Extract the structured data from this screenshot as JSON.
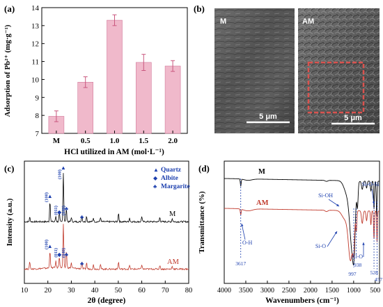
{
  "panels": {
    "a": {
      "label": "(a)"
    },
    "b": {
      "label": "(b)",
      "left_label": "M",
      "right_label": "AM",
      "scale_left": "5 μm",
      "scale_right": "5 μm"
    },
    "c": {
      "label": "(c)"
    },
    "d": {
      "label": "(d)"
    }
  },
  "chart_data": [
    {
      "id": "a",
      "type": "bar",
      "ylabel": "Adsorption of Pb²⁺ (mg·g⁻¹)",
      "xlabel": "HCl utilized in AM (mol·L⁻¹)",
      "categories": [
        "M",
        "0.5",
        "1.0",
        "1.5",
        "2.0"
      ],
      "values": [
        7.95,
        9.85,
        13.3,
        10.95,
        10.75
      ],
      "errors": [
        0.3,
        0.3,
        0.3,
        0.45,
        0.3
      ],
      "ylim": [
        7,
        14
      ],
      "yticks": [
        "7",
        "8",
        "9",
        "10",
        "11",
        "12",
        "13",
        "14"
      ],
      "bar_color": "#f0b9cb"
    },
    {
      "id": "c",
      "type": "line",
      "xlabel": "2θ (degree)",
      "ylabel": "Intensity (a.u.)",
      "xlim": [
        10,
        80
      ],
      "xticks": [
        "10",
        "20",
        "30",
        "40",
        "50",
        "60",
        "70",
        "80"
      ],
      "series": [
        {
          "name": "M",
          "color": "#000000",
          "peaks": [
            [
              12.3,
              8
            ],
            [
              20.9,
              38
            ],
            [
              23.4,
              10
            ],
            [
              24.9,
              16
            ],
            [
              26.6,
              88
            ],
            [
              27.9,
              24
            ],
            [
              30.0,
              8
            ],
            [
              34.5,
              12
            ],
            [
              36.5,
              10
            ],
            [
              39.4,
              7
            ],
            [
              42.4,
              8
            ],
            [
              50.1,
              16
            ],
            [
              54.8,
              7
            ],
            [
              60.0,
              10
            ],
            [
              67.7,
              8
            ],
            [
              73.0,
              6
            ]
          ]
        },
        {
          "name": "AM",
          "color": "#c0392b",
          "peaks": [
            [
              12.3,
              14
            ],
            [
              20.9,
              34
            ],
            [
              23.4,
              12
            ],
            [
              24.9,
              22
            ],
            [
              26.6,
              84
            ],
            [
              27.9,
              34
            ],
            [
              30.0,
              10
            ],
            [
              34.5,
              14
            ],
            [
              36.5,
              12
            ],
            [
              39.4,
              8
            ],
            [
              42.4,
              9
            ],
            [
              50.1,
              14
            ],
            [
              54.8,
              7
            ],
            [
              60.0,
              9
            ],
            [
              67.7,
              8
            ],
            [
              73.0,
              6
            ]
          ]
        }
      ],
      "peak_labels": [
        "(100)",
        "(011)",
        "(040)",
        "(100)",
        "(011)",
        "(040)"
      ],
      "legend": [
        {
          "symbol": "▲",
          "label": "Quartz"
        },
        {
          "symbol": "◆",
          "label": "Albite"
        },
        {
          "symbol": "♣",
          "label": "Margarite"
        }
      ]
    },
    {
      "id": "d",
      "type": "line",
      "xlabel": "Wavenumbers (cm⁻¹)",
      "ylabel": "Transmittance (%)",
      "xlim": [
        4000,
        400
      ],
      "xticks": [
        "4000",
        "3500",
        "3000",
        "2500",
        "2000",
        "1500",
        "1000",
        "500"
      ],
      "series": [
        {
          "name": "M",
          "color": "#000000"
        },
        {
          "name": "AM",
          "color": "#c0392b"
        }
      ],
      "annotations": [
        "Si-OH",
        "Si-O-Si",
        "O-H",
        "Si-O",
        "Al-O",
        "3617",
        "938",
        "997",
        "528",
        "457"
      ]
    }
  ]
}
